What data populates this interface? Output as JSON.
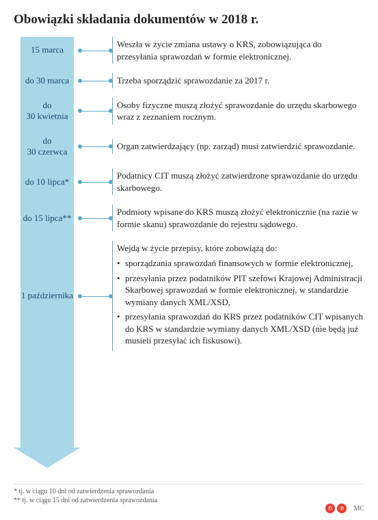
{
  "title": "Obowiązki składania dokumentów w 2018 r.",
  "arrow": {
    "fill_color": "#a8d7e8",
    "line_color": "#58a8ca",
    "body_width": 78,
    "head_width": 98,
    "head_height": 30,
    "total_height": 630
  },
  "items": [
    {
      "date": "15 marca",
      "desc": "Weszła w życie zmiana ustawy o KRS, zobowiązująca do przesyłania sprawozdań w formie elektronicznej."
    },
    {
      "date": "do 30 marca",
      "desc": "Trzeba sporządzić sprawozdanie za 2017 r."
    },
    {
      "date": "do\n30 kwietnia",
      "desc": "Osoby fizyczne muszą złożyć sprawozdanie do urzędu skarbowego wraz z zeznaniem rocznym."
    },
    {
      "date": "do\n30 czerwca",
      "desc": "Organ zatwierdzający (np. zarząd) musi zatwierdzić sprawozdanie."
    },
    {
      "date": "do 10 lipca*",
      "desc": "Podatnicy CIT muszą złożyć zatwierdzone sprawozda­nie do urzędu skarbowego."
    },
    {
      "date": "do 15 lipca**",
      "desc": "Podmioty wpisane do KRS muszą złożyć elektronicznie (na razie w formie skanu) sprawozdanie do rejestru sądowego."
    },
    {
      "date": "1 października",
      "desc_intro": "Wejdą w życie przepisy, które zobowiążą do:",
      "desc_bullets": [
        "sporządzania sprawozdań finansowych w formie elektronicznej,",
        "przesyłania przez podatników PIT szefowi Krajowej Administracji Skarbowej sprawozdań w formie elektronicznej, w standardzie wymiany danych XML/XSD,",
        "przesyłania sprawozdań do KRS przez podatników CIT wpisanych do KRS w standardzie wymiany danych XML/XSD (nie będą już musieli przesyłać ich fiskusowi)."
      ]
    }
  ],
  "footnotes": [
    "* tj. w ciągu 10 dni od zatwierdzenia sprawozdania",
    "** tj. w ciągu 15 dni od zatwierdzenia sprawozdania"
  ],
  "badges": [
    {
      "letter": "©",
      "color": "#e63b2e"
    },
    {
      "letter": "℗",
      "color": "#e63b2e"
    }
  ],
  "signature": "MC",
  "styling": {
    "background": "#ffffff",
    "text_color": "#222222",
    "date_color": "#1c4b6b",
    "title_fontsize": 19,
    "body_fontsize": 13,
    "footnote_fontsize": 10,
    "font_family": "Georgia, Times New Roman, serif"
  }
}
